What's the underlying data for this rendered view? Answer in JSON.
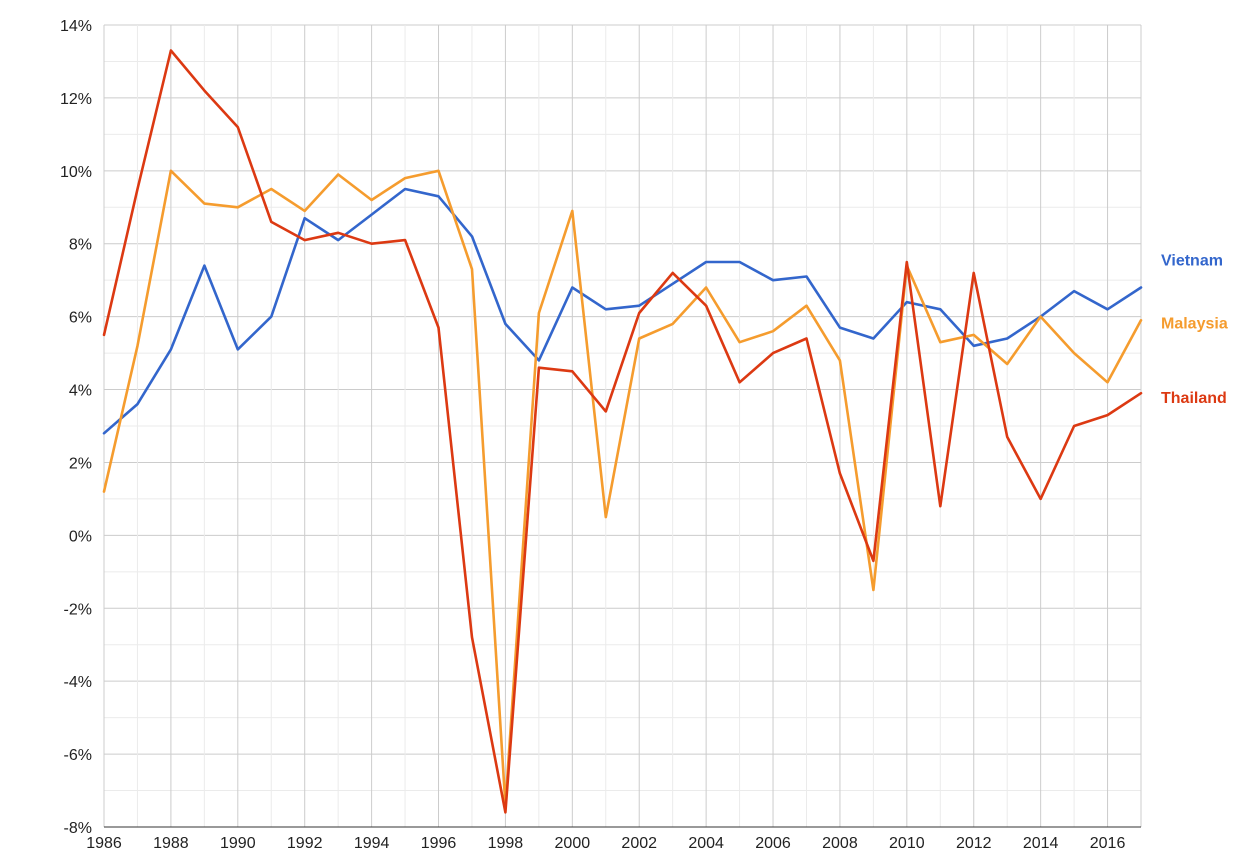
{
  "chart_data": {
    "type": "line",
    "title": "",
    "xlabel": "",
    "ylabel": "",
    "x": [
      1986,
      1987,
      1988,
      1989,
      1990,
      1991,
      1992,
      1993,
      1994,
      1995,
      1996,
      1997,
      1998,
      1999,
      2000,
      2001,
      2002,
      2003,
      2004,
      2005,
      2006,
      2007,
      2008,
      2009,
      2010,
      2011,
      2012,
      2013,
      2014,
      2015,
      2016,
      2017
    ],
    "xlim": [
      1986,
      2017
    ],
    "ylim": [
      -8,
      14
    ],
    "x_ticks": [
      "1986",
      "1988",
      "1990",
      "1992",
      "1994",
      "1996",
      "1998",
      "2000",
      "2002",
      "2004",
      "2006",
      "2008",
      "2010",
      "2012",
      "2014",
      "2016"
    ],
    "y_ticks": [
      "14%",
      "12%",
      "10%",
      "8%",
      "6%",
      "4%",
      "2%",
      "0%",
      "-2%",
      "-4%",
      "-6%",
      "-8%"
    ],
    "grid": true,
    "legend": "right-end labels",
    "series": [
      {
        "name": "Vietnam",
        "color": "#3366cc",
        "values": [
          2.8,
          3.6,
          5.1,
          7.4,
          5.1,
          6.0,
          8.7,
          8.1,
          8.8,
          9.5,
          9.3,
          8.2,
          5.8,
          4.8,
          6.8,
          6.2,
          6.3,
          6.9,
          7.5,
          7.5,
          7.0,
          7.1,
          5.7,
          5.4,
          6.4,
          6.2,
          5.2,
          5.4,
          6.0,
          6.7,
          6.2,
          6.8
        ]
      },
      {
        "name": "Malaysia",
        "color": "#f59c2e",
        "values": [
          1.2,
          5.2,
          10.0,
          9.1,
          9.0,
          9.5,
          8.9,
          9.9,
          9.2,
          9.8,
          10.0,
          7.3,
          -7.4,
          6.1,
          8.9,
          0.5,
          5.4,
          5.8,
          6.8,
          5.3,
          5.6,
          6.3,
          4.8,
          -1.5,
          7.4,
          5.3,
          5.5,
          4.7,
          6.0,
          5.0,
          4.2,
          5.9
        ]
      },
      {
        "name": "Thailand",
        "color": "#dc3912",
        "values": [
          5.5,
          9.5,
          13.3,
          12.2,
          11.2,
          8.6,
          8.1,
          8.3,
          8.0,
          8.1,
          5.7,
          -2.8,
          -7.6,
          4.6,
          4.5,
          3.4,
          6.1,
          7.2,
          6.3,
          4.2,
          5.0,
          5.4,
          1.7,
          -0.7,
          7.5,
          0.8,
          7.2,
          2.7,
          1.0,
          3.0,
          3.3,
          3.9
        ]
      }
    ]
  }
}
